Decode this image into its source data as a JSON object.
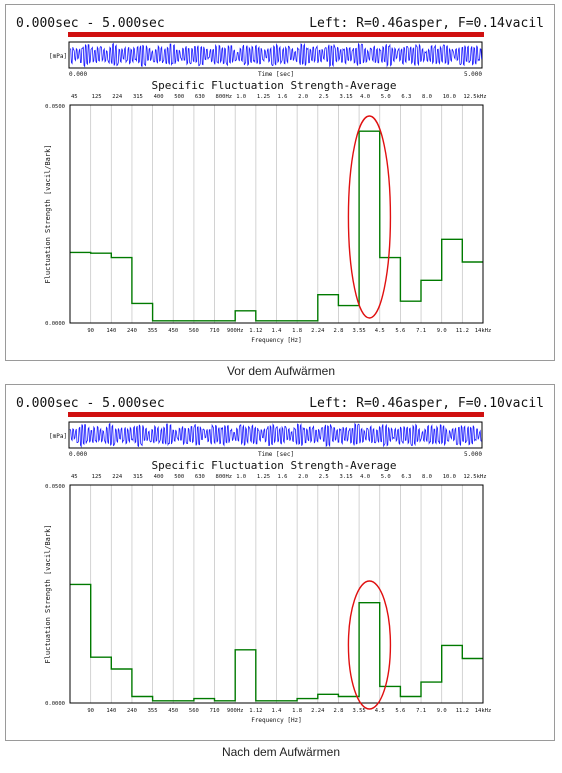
{
  "panels": [
    {
      "time_range": "0.000sec  -  5.000sec",
      "channel_info": "Left: R=0.46asper, F=0.14vacil",
      "caption": "Vor dem Aufwärmen"
    },
    {
      "time_range": "0.000sec  -  5.000sec",
      "channel_info": "Left: R=0.46asper, F=0.10vacil",
      "caption": "Nach dem Aufwärmen"
    }
  ],
  "colors": {
    "waveform": "#1a1aff",
    "step": "#007a00",
    "highlight": "#e01010",
    "progress_bar": "#d01010",
    "grid": "#c8c8c8"
  },
  "waveform": {
    "unit_label": "[mPa]",
    "time_axis_label": "Time [sec]",
    "time_start": "0.000",
    "time_end": "5.000"
  },
  "chart_data": [
    {
      "type": "line",
      "step": true,
      "title": "Specific Fluctuation Strength-Average",
      "xlabel": "Frequency [Hz]",
      "ylabel": "Fluctuation Strength [vacil/Bark]",
      "ylim": [
        0,
        0.05
      ],
      "y_tick_labels": [
        "0.0500",
        "0.0000"
      ],
      "top_tick_labels": [
        "45",
        "125",
        "224",
        "315",
        "400",
        "500",
        "630",
        "800Hz",
        "1.0",
        "1.25",
        "1.6",
        "2.0",
        "2.5",
        "3.15",
        "4.0",
        "5.0",
        "6.3",
        "8.0",
        "10.0",
        "12.5kHz"
      ],
      "bottom_tick_labels": [
        "90",
        "140",
        "240",
        "355",
        "450",
        "560",
        "710",
        "900Hz",
        "1.12",
        "1.4",
        "1.8",
        "2.24",
        "2.8",
        "3.55",
        "4.5",
        "5.6",
        "7.1",
        "9.0",
        "11.2",
        "14kHz"
      ],
      "values": [
        0.0162,
        0.016,
        0.015,
        0.0045,
        0.0005,
        0.0005,
        0.0005,
        0.0005,
        0.0028,
        0.0005,
        0.0005,
        0.0005,
        0.0065,
        0.004,
        0.044,
        0.015,
        0.005,
        0.0098,
        0.0192,
        0.014
      ],
      "grid": true,
      "annotation": "highlight ellipse around the 3.55-4.5 kHz bands"
    },
    {
      "type": "line",
      "step": true,
      "title": "Specific Fluctuation Strength-Average",
      "xlabel": "Frequency [Hz]",
      "ylabel": "Fluctuation Strength [vacil/Bark]",
      "ylim": [
        0,
        0.05
      ],
      "y_tick_labels": [
        "0.0500",
        "0.0000"
      ],
      "top_tick_labels": [
        "45",
        "125",
        "224",
        "315",
        "400",
        "500",
        "630",
        "800Hz",
        "1.0",
        "1.25",
        "1.6",
        "2.0",
        "2.5",
        "3.15",
        "4.0",
        "5.0",
        "6.3",
        "8.0",
        "10.0",
        "12.5kHz"
      ],
      "bottom_tick_labels": [
        "90",
        "140",
        "240",
        "355",
        "450",
        "560",
        "710",
        "900Hz",
        "1.12",
        "1.4",
        "1.8",
        "2.24",
        "2.8",
        "3.55",
        "4.5",
        "5.6",
        "7.1",
        "9.0",
        "11.2",
        "14kHz"
      ],
      "values": [
        0.0272,
        0.0105,
        0.0078,
        0.0015,
        0.0005,
        0.0005,
        0.001,
        0.0005,
        0.0122,
        0.0005,
        0.0005,
        0.001,
        0.002,
        0.0015,
        0.023,
        0.0038,
        0.0015,
        0.0048,
        0.0132,
        0.0102
      ],
      "grid": true,
      "annotation": "highlight ellipse around the 3.55-4.5 kHz bands"
    }
  ]
}
